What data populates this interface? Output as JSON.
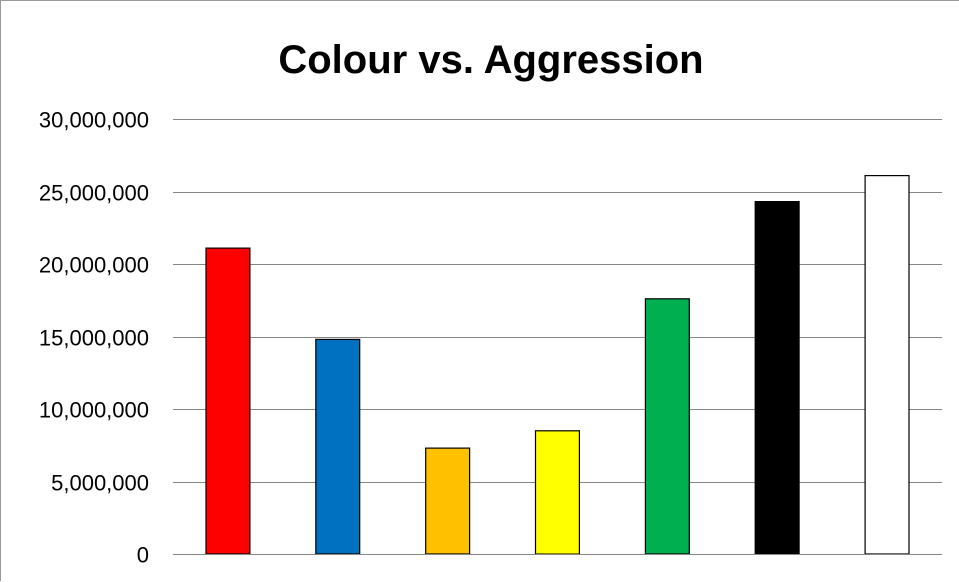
{
  "chart_data": {
    "type": "bar",
    "title": "Colour vs. Aggression",
    "xlabel": "",
    "ylabel": "",
    "ylim": [
      0,
      30000000
    ],
    "yticks": [
      0,
      5000000,
      10000000,
      15000000,
      20000000,
      25000000,
      30000000
    ],
    "ytick_labels": [
      "0",
      "5,000,000",
      "10,000,000",
      "15,000,000",
      "20,000,000",
      "25,000,000",
      "30,000,000"
    ],
    "grid": true,
    "legend": "none",
    "bars": [
      {
        "value": 21100000,
        "fill": "#ff0000"
      },
      {
        "value": 14800000,
        "fill": "#0070c0"
      },
      {
        "value": 7300000,
        "fill": "#ffc000"
      },
      {
        "value": 8500000,
        "fill": "#ffff00"
      },
      {
        "value": 17600000,
        "fill": "#00b050"
      },
      {
        "value": 24300000,
        "fill": "#000000"
      },
      {
        "value": 26100000,
        "fill": "#ffffff"
      }
    ],
    "colors": {
      "gridline": "#868686",
      "bar_outline": "#000000"
    }
  }
}
